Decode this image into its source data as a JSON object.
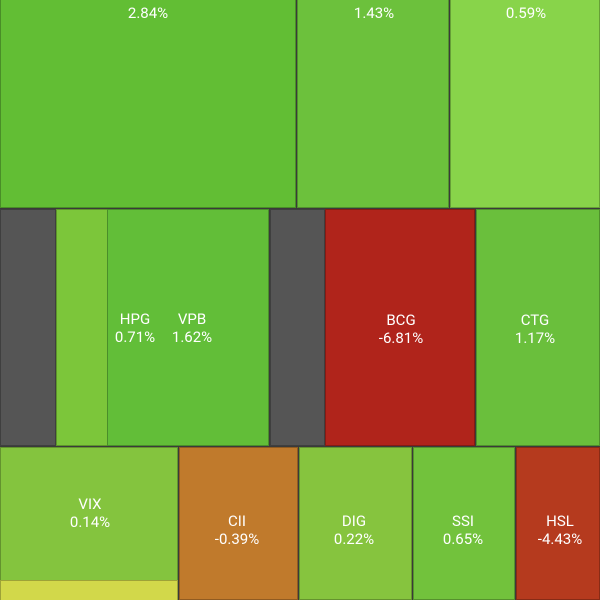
{
  "tiles": [
    {
      "change": "2.84%",
      "color": "#62be34"
    },
    {
      "change": "1.43%",
      "color": "#6cc13c"
    },
    {
      "change": "0.59%",
      "color": "#88d44a"
    },
    {
      "color": "#555555"
    },
    {
      "ticker": "HPG",
      "change": "0.71%",
      "color": "#7cc63a"
    },
    {
      "ticker": "VPB",
      "change": "1.62%",
      "color": "#62be38"
    },
    {
      "color": "#555555"
    },
    {
      "ticker": "BCG",
      "change": "-6.81%",
      "color": "#b0241b"
    },
    {
      "ticker": "CTG",
      "change": "1.17%",
      "color": "#6abf3c"
    },
    {
      "ticker": "VIX",
      "change": "0.14%",
      "color": "#84c43e"
    },
    {
      "color": "#d2d84a"
    },
    {
      "ticker": "CII",
      "change": "-0.39%",
      "color": "#c07a2c"
    },
    {
      "ticker": "DIG",
      "change": "0.22%",
      "color": "#86c43e"
    },
    {
      "ticker": "SSI",
      "change": "0.65%",
      "color": "#72c23c"
    },
    {
      "ticker": "HSL",
      "change": "-4.43%",
      "color": "#b53a1e"
    }
  ]
}
